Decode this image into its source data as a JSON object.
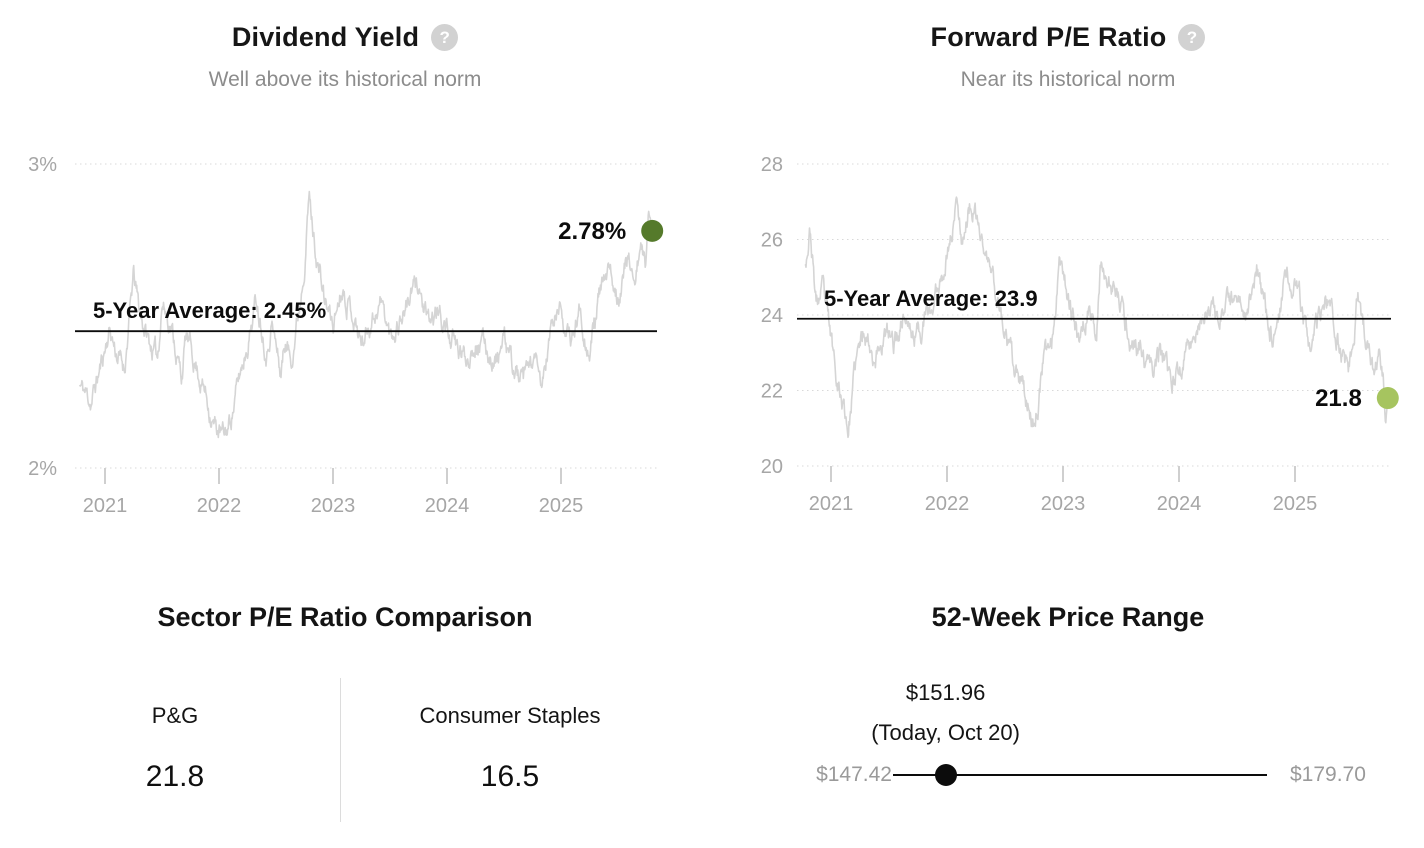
{
  "icons": {
    "help": "?"
  },
  "chart_data": [
    {
      "id": "dividend-yield",
      "type": "line",
      "title": "Dividend Yield",
      "subtitle": "Well above its historical norm",
      "unit": "%",
      "ylim": [
        2,
        3
      ],
      "grid": "dotted-horizontal",
      "legend": "none",
      "y_ticks": [
        {
          "v": 3,
          "label": "3%"
        },
        {
          "v": 2,
          "label": "2%"
        }
      ],
      "x_ticks": [
        {
          "v": 2021,
          "label": "2021"
        },
        {
          "v": 2022,
          "label": "2022"
        },
        {
          "v": 2023,
          "label": "2023"
        },
        {
          "v": 2024,
          "label": "2024"
        },
        {
          "v": 2025,
          "label": "2025"
        }
      ],
      "average": {
        "value": 2.45,
        "label": "5-Year Average: 2.45%"
      },
      "last": {
        "value": 2.78,
        "label": "2.78%"
      },
      "colors": {
        "series": "#d5d5d5",
        "average_line": "#0c0c0c",
        "dot": "#557a2b"
      },
      "x": [
        2020.78,
        2020.88,
        2020.96,
        2021.04,
        2021.1,
        2021.17,
        2021.25,
        2021.3,
        2021.38,
        2021.46,
        2021.5,
        2021.58,
        2021.67,
        2021.71,
        2021.79,
        2021.88,
        2021.96,
        2022.04,
        2022.08,
        2022.17,
        2022.25,
        2022.33,
        2022.42,
        2022.46,
        2022.54,
        2022.58,
        2022.63,
        2022.71,
        2022.75,
        2022.79,
        2022.83,
        2022.92,
        2023.0,
        2023.08,
        2023.17,
        2023.25,
        2023.33,
        2023.42,
        2023.5,
        2023.58,
        2023.67,
        2023.75,
        2023.83,
        2023.92,
        2024.0,
        2024.08,
        2024.17,
        2024.25,
        2024.33,
        2024.42,
        2024.5,
        2024.58,
        2024.67,
        2024.75,
        2024.83,
        2024.92,
        2025.0,
        2025.08,
        2025.17,
        2025.25,
        2025.33,
        2025.42,
        2025.5,
        2025.58,
        2025.65,
        2025.7,
        2025.74,
        2025.77,
        2025.79,
        2025.8
      ],
      "y": [
        2.27,
        2.22,
        2.33,
        2.46,
        2.38,
        2.33,
        2.63,
        2.52,
        2.42,
        2.36,
        2.55,
        2.47,
        2.3,
        2.43,
        2.35,
        2.25,
        2.14,
        2.1,
        2.13,
        2.28,
        2.42,
        2.56,
        2.39,
        2.49,
        2.31,
        2.42,
        2.36,
        2.55,
        2.7,
        2.9,
        2.76,
        2.56,
        2.47,
        2.61,
        2.52,
        2.41,
        2.49,
        2.55,
        2.43,
        2.49,
        2.56,
        2.61,
        2.46,
        2.51,
        2.46,
        2.39,
        2.36,
        2.43,
        2.4,
        2.35,
        2.41,
        2.33,
        2.27,
        2.36,
        2.26,
        2.47,
        2.53,
        2.4,
        2.53,
        2.37,
        2.56,
        2.63,
        2.58,
        2.68,
        2.64,
        2.72,
        2.66,
        2.86,
        2.8,
        2.78
      ]
    },
    {
      "id": "forward-pe",
      "type": "line",
      "title": "Forward P/E Ratio",
      "subtitle": "Near its historical norm",
      "unit": "",
      "ylim": [
        20,
        28
      ],
      "grid": "dotted-horizontal",
      "legend": "none",
      "y_ticks": [
        {
          "v": 28,
          "label": "28"
        },
        {
          "v": 26,
          "label": "26"
        },
        {
          "v": 24,
          "label": "24"
        },
        {
          "v": 22,
          "label": "22"
        },
        {
          "v": 20,
          "label": "20"
        }
      ],
      "x_ticks": [
        {
          "v": 2021,
          "label": "2021"
        },
        {
          "v": 2022,
          "label": "2022"
        },
        {
          "v": 2023,
          "label": "2023"
        },
        {
          "v": 2024,
          "label": "2024"
        },
        {
          "v": 2025,
          "label": "2025"
        }
      ],
      "average": {
        "value": 23.9,
        "label": "5-Year Average: 23.9"
      },
      "last": {
        "value": 21.8,
        "label": "21.8"
      },
      "colors": {
        "series": "#d5d5d5",
        "average_line": "#0c0c0c",
        "dot": "#a6c45f"
      },
      "x": [
        2020.78,
        2020.82,
        2020.87,
        2020.93,
        2021.0,
        2021.08,
        2021.15,
        2021.21,
        2021.29,
        2021.38,
        2021.46,
        2021.54,
        2021.63,
        2021.71,
        2021.79,
        2021.88,
        2021.96,
        2022.04,
        2022.09,
        2022.13,
        2022.2,
        2022.27,
        2022.33,
        2022.42,
        2022.5,
        2022.58,
        2022.67,
        2022.75,
        2022.83,
        2022.92,
        2022.97,
        2023.04,
        2023.13,
        2023.21,
        2023.29,
        2023.33,
        2023.42,
        2023.5,
        2023.58,
        2023.67,
        2023.75,
        2023.83,
        2023.92,
        2024.0,
        2024.08,
        2024.17,
        2024.25,
        2024.33,
        2024.42,
        2024.5,
        2024.58,
        2024.67,
        2024.75,
        2024.83,
        2024.92,
        2024.98,
        2025.04,
        2025.13,
        2025.21,
        2025.29,
        2025.38,
        2025.46,
        2025.54,
        2025.6,
        2025.65,
        2025.69,
        2025.73,
        2025.76,
        2025.78,
        2025.8
      ],
      "y": [
        25.5,
        26.3,
        24.3,
        24.6,
        23.3,
        22.0,
        21.0,
        22.6,
        23.7,
        22.9,
        23.5,
        23.2,
        24.1,
        23.4,
        23.8,
        24.2,
        25.2,
        26.2,
        27.1,
        26.1,
        26.9,
        26.3,
        25.6,
        24.7,
        23.5,
        22.4,
        21.9,
        21.1,
        22.7,
        23.5,
        25.8,
        24.7,
        23.2,
        24.2,
        23.6,
        25.5,
        24.7,
        24.2,
        23.4,
        23.0,
        22.4,
        23.0,
        22.1,
        22.5,
        23.2,
        23.8,
        24.1,
        23.7,
        24.2,
        24.5,
        24.2,
        25.3,
        24.0,
        23.4,
        25.2,
        24.8,
        24.5,
        22.9,
        23.8,
        24.3,
        23.2,
        22.6,
        24.4,
        23.6,
        23.1,
        22.4,
        22.9,
        22.2,
        21.0,
        21.8
      ]
    },
    {
      "id": "sector-pe-comparison",
      "type": "table",
      "title": "Sector P/E Ratio Comparison",
      "columns": [
        "P&G",
        "Consumer Staples"
      ],
      "values": [
        21.8,
        16.5
      ],
      "display_values": [
        "21.8",
        "16.5"
      ]
    },
    {
      "id": "52-week-price-range",
      "type": "scatter",
      "title": "52-Week Price Range",
      "low": {
        "label": "$147.42",
        "value": 147.42
      },
      "high": {
        "label": "$179.70",
        "value": 179.7
      },
      "current": {
        "label": "$151.96",
        "value": 151.96,
        "sublabel": "(Today, Oct 20)"
      }
    }
  ]
}
